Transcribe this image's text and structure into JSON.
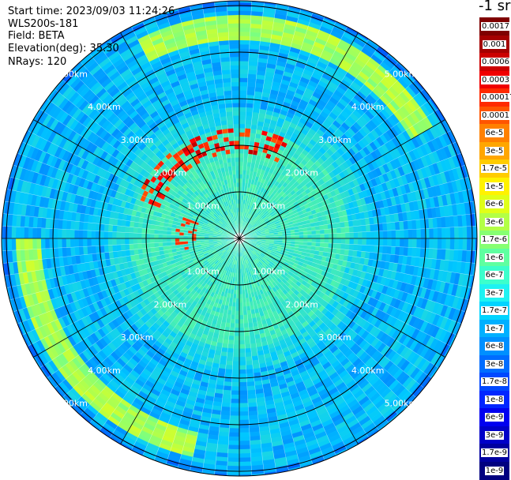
{
  "header": {
    "start_time": "Start time: 2023/09/03 11:24:26",
    "instrument": "WLS200s-181",
    "field": "Field: BETA",
    "elevation": "Elevation(deg): 35.30",
    "nrays": "NRays: 120"
  },
  "colorbar": {
    "title": "-1 sr",
    "labels": [
      "0.0017",
      "0.001",
      "0.0006",
      "0.0003",
      "0.00017",
      "0.0001",
      "6e-5",
      "3e-5",
      "1.7e-5",
      "1e-5",
      "6e-6",
      "3e-6",
      "1.7e-6",
      "1e-6",
      "6e-7",
      "3e-7",
      "1.7e-7",
      "1e-7",
      "6e-8",
      "3e-8",
      "1.7e-8",
      "1e-8",
      "6e-9",
      "3e-9",
      "1.7e-9",
      "1e-9"
    ],
    "colors": [
      "#7f0000",
      "#a50000",
      "#cc0000",
      "#f00000",
      "#ff2a00",
      "#ff5500",
      "#ff8000",
      "#ffa600",
      "#ffcc00",
      "#fff200",
      "#e0ff18",
      "#b3ff46",
      "#86ff72",
      "#5fffa0",
      "#3cffcc",
      "#1ef2f2",
      "#00d4ff",
      "#00b0ff",
      "#0090ff",
      "#006cff",
      "#0048ff",
      "#0026ff",
      "#0000f0",
      "#0000c8",
      "#0000a0",
      "#000080"
    ]
  },
  "range_labels": {
    "r1": "1.00km",
    "r2": "2.00km",
    "r3": "3.00km",
    "r4": "4.00km",
    "r5": "5.00km"
  },
  "chart_data": {
    "type": "heatmap",
    "projection": "polar",
    "field": "BETA",
    "nrays": 120,
    "range_rings_km": [
      1,
      2,
      3,
      4,
      5
    ],
    "max_range_km": 5.1,
    "azimuth_spokes_deg": [
      0,
      30,
      60,
      90,
      120,
      150,
      180,
      210,
      240,
      270,
      300,
      330
    ],
    "colorscale": "jet",
    "color_levels": [
      "0.0017",
      "0.001",
      "0.0006",
      "0.0003",
      "0.00017",
      "0.0001",
      "6e-5",
      "3e-5",
      "1.7e-5",
      "1e-5",
      "6e-6",
      "3e-6",
      "1.7e-6",
      "1e-6",
      "6e-7",
      "3e-7",
      "1.7e-7",
      "1e-7",
      "6e-8",
      "3e-8",
      "1.7e-8",
      "1e-8",
      "6e-9",
      "3e-9",
      "1.7e-9",
      "1e-9"
    ]
  }
}
